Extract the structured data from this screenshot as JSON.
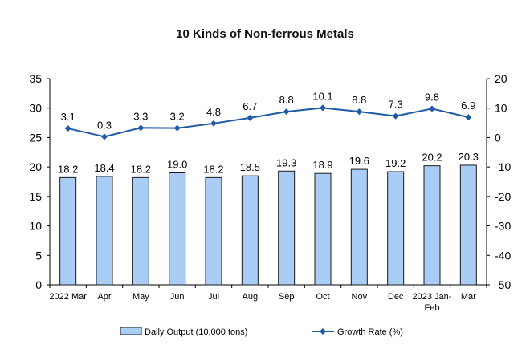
{
  "chart_data": {
    "type": "bar",
    "title": "10 Kinds of Non-ferrous Metals",
    "categories": [
      "2022 Mar",
      "Apr",
      "May",
      "Jun",
      "Jul",
      "Aug",
      "Sep",
      "Oct",
      "Nov",
      "Dec",
      "2023 Jan-Feb",
      "Mar"
    ],
    "category_lines": [
      [
        "2022 Mar"
      ],
      [
        "Apr"
      ],
      [
        "May"
      ],
      [
        "Jun"
      ],
      [
        "Jul"
      ],
      [
        "Aug"
      ],
      [
        "Sep"
      ],
      [
        "Oct"
      ],
      [
        "Nov"
      ],
      [
        "Dec"
      ],
      [
        "2023 Jan-",
        "Feb"
      ],
      [
        "Mar"
      ]
    ],
    "series": [
      {
        "name": "Daily Output (10,000 tons)",
        "type": "bar",
        "axis": "left",
        "values": [
          18.2,
          18.4,
          18.2,
          19.0,
          18.2,
          18.5,
          19.3,
          18.9,
          19.6,
          19.2,
          20.2,
          20.3
        ],
        "labels": [
          "18.2",
          "18.4",
          "18.2",
          "19.0",
          "18.2",
          "18.5",
          "19.3",
          "18.9",
          "19.6",
          "19.2",
          "20.2",
          "20.3"
        ]
      },
      {
        "name": "Growth Rate (%)",
        "type": "line",
        "axis": "right",
        "values": [
          3.1,
          0.3,
          3.3,
          3.2,
          4.8,
          6.7,
          8.8,
          10.1,
          8.8,
          7.3,
          9.8,
          6.9
        ],
        "labels": [
          "3.1",
          "0.3",
          "3.3",
          "3.2",
          "4.8",
          "6.7",
          "8.8",
          "10.1",
          "8.8",
          "7.3",
          "9.8",
          "6.9"
        ]
      }
    ],
    "y_left": {
      "ylim": [
        0,
        35
      ],
      "ticks": [
        "0",
        "5",
        "10",
        "15",
        "20",
        "25",
        "30",
        "35"
      ]
    },
    "y_right": {
      "ylim": [
        -50,
        20
      ],
      "ticks": [
        "-50",
        "-40",
        "-30",
        "-20",
        "-10",
        "0",
        "10",
        "20"
      ]
    },
    "legend_position": "bottom",
    "colors": {
      "bar_fill": "#a9cdf5",
      "bar_stroke": "#1a1a1a",
      "line": "#1f5aa6",
      "axis": "#000000",
      "text": "#000000"
    }
  }
}
